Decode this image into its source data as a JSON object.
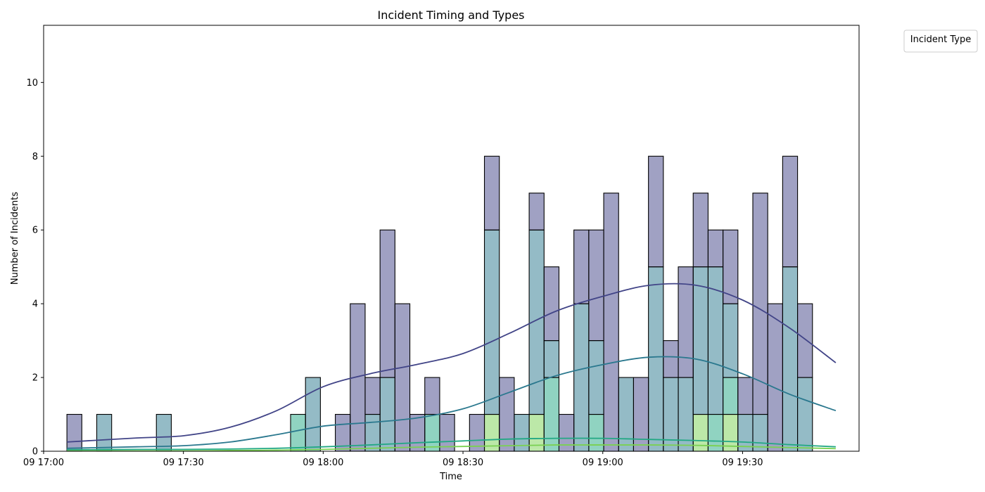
{
  "chart_data": {
    "type": "bar",
    "subtype": "stacked-histogram-with-kde",
    "title": "Incident Timing and Types",
    "xlabel": "Time",
    "ylabel": "Number of Incidents",
    "x_ticks": [
      "09 17:00",
      "09 17:30",
      "09 18:00",
      "09 18:30",
      "09 19:00",
      "09 19:30"
    ],
    "x_tick_minutes": [
      0,
      30,
      60,
      90,
      120,
      150
    ],
    "xlim_minutes": [
      0,
      175
    ],
    "y_ticks": [
      0,
      2,
      4,
      6,
      8,
      10
    ],
    "ylim": [
      0,
      11.55
    ],
    "bin_width_minutes": 3.2,
    "bin_starts_minutes": [
      5.0,
      8.2,
      11.4,
      14.6,
      17.8,
      21.0,
      24.2,
      27.4,
      30.6,
      33.8,
      37.0,
      40.2,
      43.4,
      46.6,
      49.8,
      53.0,
      56.2,
      59.4,
      62.6,
      65.8,
      69.0,
      72.2,
      75.4,
      78.6,
      81.8,
      85.0,
      88.2,
      91.4,
      94.6,
      97.8,
      101.0,
      104.2,
      107.4,
      110.6,
      113.8,
      117.0,
      120.2,
      123.4,
      126.6,
      129.8,
      133.0,
      136.2,
      139.4,
      142.6,
      145.8,
      149.0,
      152.2,
      155.4,
      158.6,
      161.8
    ],
    "legend": {
      "title": "Incident Type",
      "entries": [],
      "placement": "outside upper right"
    },
    "series": [
      {
        "color": "#414487",
        "values": [
          1,
          0,
          0,
          0,
          0,
          0,
          0,
          0,
          0,
          0,
          0,
          0,
          0,
          0,
          0,
          0,
          0,
          0,
          1,
          4,
          1,
          4,
          4,
          1,
          1,
          1,
          0,
          1,
          2,
          2,
          0,
          1,
          2,
          1,
          2,
          3,
          7,
          0,
          2,
          3,
          1,
          3,
          2,
          1,
          2,
          1,
          6,
          4,
          3,
          2
        ]
      },
      {
        "color": "#2a788e",
        "values": [
          0,
          0,
          1,
          0,
          0,
          0,
          1,
          0,
          0,
          0,
          0,
          0,
          0,
          0,
          0,
          0,
          2,
          0,
          0,
          0,
          1,
          2,
          0,
          0,
          0,
          0,
          0,
          0,
          5,
          0,
          1,
          5,
          1,
          0,
          4,
          2,
          0,
          2,
          0,
          5,
          2,
          2,
          4,
          4,
          2,
          1,
          1,
          0,
          5,
          2
        ]
      },
      {
        "color": "#22a884",
        "values": [
          0,
          0,
          0,
          0,
          0,
          0,
          0,
          0,
          0,
          0,
          0,
          0,
          0,
          0,
          0,
          1,
          0,
          0,
          0,
          0,
          0,
          0,
          0,
          0,
          1,
          0,
          0,
          0,
          0,
          0,
          0,
          0,
          2,
          0,
          0,
          1,
          0,
          0,
          0,
          0,
          0,
          0,
          0,
          1,
          1,
          0,
          0,
          0,
          0,
          0
        ]
      },
      {
        "color": "#7ad151",
        "values": [
          0,
          0,
          0,
          0,
          0,
          0,
          0,
          0,
          0,
          0,
          0,
          0,
          0,
          0,
          0,
          0,
          0,
          0,
          0,
          0,
          0,
          0,
          0,
          0,
          0,
          0,
          0,
          0,
          1,
          0,
          0,
          1,
          0,
          0,
          0,
          0,
          0,
          0,
          0,
          0,
          0,
          0,
          1,
          0,
          1,
          0,
          0,
          0,
          0,
          0
        ]
      }
    ],
    "kde_curves": [
      {
        "color": "#414487",
        "x": [
          5,
          20,
          30,
          40,
          50,
          60,
          70,
          80,
          90,
          100,
          110,
          120,
          130,
          140,
          150,
          160,
          170
        ],
        "y": [
          0.25,
          0.36,
          0.42,
          0.65,
          1.1,
          1.75,
          2.1,
          2.35,
          2.65,
          3.2,
          3.8,
          4.2,
          4.5,
          4.5,
          4.1,
          3.35,
          2.4
        ]
      },
      {
        "color": "#2a788e",
        "x": [
          5,
          20,
          30,
          40,
          50,
          60,
          70,
          80,
          90,
          100,
          110,
          120,
          130,
          140,
          150,
          160,
          170
        ],
        "y": [
          0.08,
          0.12,
          0.15,
          0.25,
          0.45,
          0.68,
          0.78,
          0.9,
          1.15,
          1.6,
          2.05,
          2.35,
          2.55,
          2.5,
          2.1,
          1.55,
          1.1
        ]
      },
      {
        "color": "#22a884",
        "x": [
          5,
          20,
          30,
          40,
          50,
          60,
          70,
          80,
          90,
          100,
          110,
          120,
          130,
          140,
          150,
          160,
          170
        ],
        "y": [
          0.04,
          0.05,
          0.05,
          0.06,
          0.08,
          0.12,
          0.17,
          0.23,
          0.28,
          0.33,
          0.35,
          0.35,
          0.32,
          0.29,
          0.25,
          0.18,
          0.12
        ]
      },
      {
        "color": "#7ad151",
        "x": [
          5,
          20,
          30,
          40,
          50,
          60,
          70,
          80,
          90,
          100,
          110,
          120,
          130,
          140,
          150,
          160,
          170
        ],
        "y": [
          0.01,
          0.01,
          0.01,
          0.02,
          0.03,
          0.05,
          0.08,
          0.11,
          0.13,
          0.15,
          0.17,
          0.17,
          0.17,
          0.16,
          0.13,
          0.1,
          0.07
        ]
      }
    ]
  }
}
